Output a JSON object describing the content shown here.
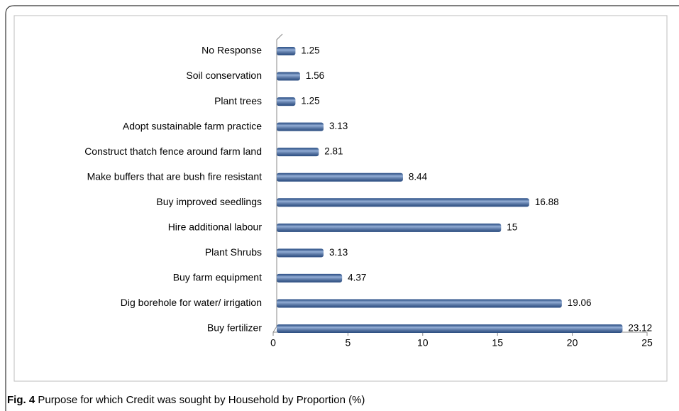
{
  "chart_data": {
    "type": "barh",
    "categories": [
      "No Response",
      "Soil conservation",
      "Plant trees",
      "Adopt sustainable farm practice",
      "Construct thatch fence around farm land",
      "Make buffers that are bush fire resistant",
      "Buy improved seedlings",
      "Hire additional labour",
      "Plant Shrubs",
      "Buy farm equipment",
      "Dig borehole for water/ irrigation",
      "Buy fertilizer"
    ],
    "values": [
      1.25,
      1.56,
      1.25,
      3.13,
      2.81,
      8.44,
      16.88,
      15,
      3.13,
      4.37,
      19.06,
      23.12
    ],
    "color": "#3f6fb8",
    "xlim": [
      0,
      25
    ],
    "xticks": [
      0,
      5,
      10,
      15,
      20,
      25
    ],
    "grid": false
  },
  "figure": {
    "label": "Fig. 4",
    "caption": "Purpose for which Credit was sought by Household by Proportion (%)"
  }
}
